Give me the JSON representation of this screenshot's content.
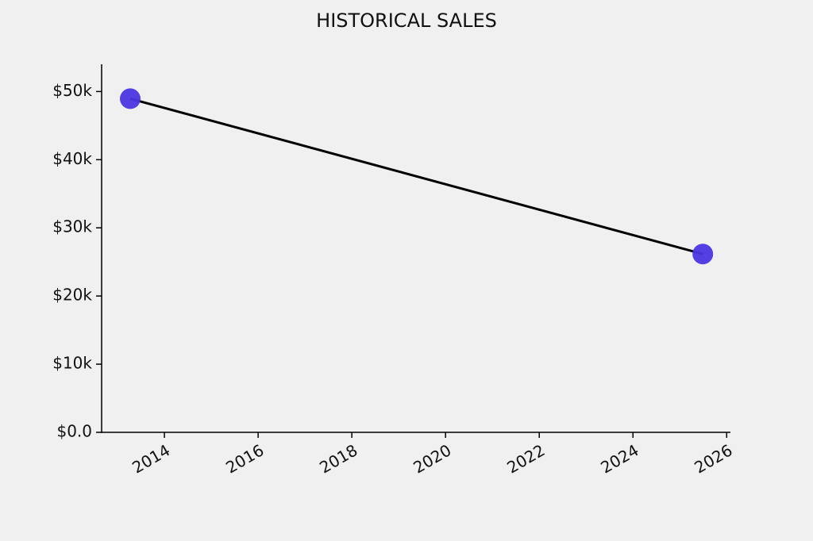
{
  "chart_data": {
    "type": "line",
    "title": "HISTORICAL SALES",
    "x": [
      2013.27,
      2025.49
    ],
    "values": [
      48950,
      26160
    ],
    "color": "#000000",
    "marker_color": "#4b35e0",
    "xlim": [
      2012.66,
      2026.08
    ],
    "xticks": [
      2014,
      2016,
      2018,
      2020,
      2022,
      2024,
      2026
    ],
    "ylim": [
      0,
      54000
    ],
    "yticks": [
      {
        "value": 0,
        "label": "$0.0"
      },
      {
        "value": 10000,
        "label": "$10k"
      },
      {
        "value": 20000,
        "label": "$20k"
      },
      {
        "value": 30000,
        "label": "$30k"
      },
      {
        "value": 40000,
        "label": "$40k"
      },
      {
        "value": 50000,
        "label": "$50k"
      }
    ],
    "grid": false
  }
}
